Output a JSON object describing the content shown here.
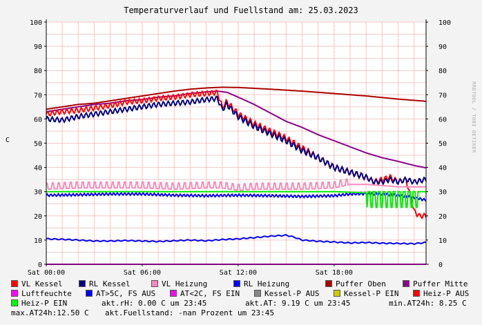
{
  "title": "Temperaturverlauf und Fuellstand am: 25.03.2023",
  "side_credit": "RRDTOOL / TOBI OETIKER",
  "chart_data": {
    "type": "line",
    "ylabel": "C",
    "ylim": [
      0,
      100
    ],
    "yticks": [
      0,
      10,
      20,
      30,
      40,
      50,
      60,
      70,
      80,
      90,
      100
    ],
    "xlim": [
      0,
      23.75
    ],
    "xticks": [
      {
        "h": 0,
        "label": "Sat 00:00"
      },
      {
        "h": 6,
        "label": "Sat 06:00"
      },
      {
        "h": 12,
        "label": "Sat 12:00"
      },
      {
        "h": 18,
        "label": "Sat 18:00"
      }
    ],
    "grid": true,
    "series": [
      {
        "name": "Puffer Oben",
        "color": "#aa0000",
        "x": [
          0,
          1,
          2,
          3,
          4,
          5,
          6,
          7,
          8,
          9,
          10,
          11,
          12,
          14,
          16,
          18,
          20,
          22,
          23.75
        ],
        "y": [
          64,
          65,
          66,
          66.5,
          67.5,
          68.5,
          69.5,
          70.5,
          71.5,
          72.3,
          72.8,
          73.1,
          73,
          72.3,
          71.5,
          70.5,
          69.5,
          68.2,
          67.3
        ]
      },
      {
        "name": "Puffer Mitte",
        "color": "#8b008b",
        "x": [
          0,
          1,
          2,
          3,
          4,
          5,
          6,
          7,
          8,
          9,
          10,
          10.7,
          11.3,
          12,
          13,
          14,
          15,
          16,
          17,
          18,
          19,
          20,
          21,
          22,
          23,
          23.75
        ],
        "y": [
          63,
          64,
          65,
          66,
          66.5,
          67.5,
          68,
          69,
          69.5,
          70.5,
          71.2,
          71.5,
          71,
          69,
          66,
          62.5,
          59,
          56.5,
          53.5,
          51,
          48.5,
          46,
          44,
          42.5,
          40.8,
          39.8
        ]
      },
      {
        "name": "VL Kessel",
        "color": "#ff0000",
        "x": [
          0,
          1,
          2,
          3,
          4,
          5,
          6,
          7,
          8,
          9,
          10,
          10.7,
          11,
          11.3,
          12,
          13,
          14,
          15,
          16,
          17,
          18,
          19,
          20,
          20.5,
          21,
          21.5,
          22,
          22.5,
          23,
          23.3,
          23.75
        ],
        "y": [
          62,
          63,
          63.5,
          64.5,
          65.5,
          67,
          67.5,
          68.5,
          69,
          70,
          70.5,
          71,
          65,
          67,
          62,
          58,
          55,
          52,
          48,
          44,
          40,
          38,
          36,
          34,
          35,
          36,
          34,
          35,
          22,
          20,
          20
        ]
      },
      {
        "name": "RL Kessel",
        "color": "#000080",
        "x": [
          0,
          1,
          2,
          3,
          4,
          5,
          6,
          7,
          8,
          9,
          10,
          10.7,
          11,
          11.3,
          12,
          13,
          14,
          15,
          16,
          17,
          18,
          19,
          20,
          20.5,
          21,
          21.5,
          22,
          22.5,
          23,
          23.75
        ],
        "y": [
          60,
          59.5,
          61,
          62,
          63,
          64,
          65,
          66,
          66.5,
          67,
          68,
          68.5,
          64,
          66,
          61,
          57,
          54,
          51,
          47,
          44,
          40,
          38,
          36,
          34,
          34,
          35,
          34,
          35,
          34,
          35
        ]
      },
      {
        "name": "VL Heizung",
        "color": "#ff88bb",
        "x": [
          0,
          2,
          4,
          6,
          8,
          10,
          11,
          12,
          13,
          14,
          16,
          18,
          19,
          20,
          21,
          22,
          23,
          23.75
        ],
        "y": [
          31,
          31.5,
          31.5,
          31.5,
          31,
          31.5,
          31.5,
          30.5,
          31,
          31,
          31,
          31.5,
          33,
          33,
          32.5,
          32,
          32,
          32
        ]
      },
      {
        "name": "RL Heizung",
        "color": "#0000ff",
        "x": [
          0,
          2,
          4,
          6,
          8,
          10,
          12,
          14,
          16,
          18,
          19,
          20,
          21,
          22,
          23,
          23.75
        ],
        "y": [
          28.5,
          28.7,
          29,
          29,
          28.5,
          28.3,
          28.5,
          28.3,
          28,
          28.3,
          29,
          29.2,
          29,
          28.5,
          27.5,
          26.5
        ]
      },
      {
        "name": "Luftfeuchte",
        "color": "#ff00ff",
        "x": [
          0,
          23.75
        ],
        "y": [
          0,
          0
        ]
      },
      {
        "name": "AT>5C, FS AUS",
        "color": "#0000ff",
        "x": [
          0,
          1,
          2,
          3,
          4,
          5,
          6,
          7,
          8,
          9,
          10,
          11,
          12,
          13,
          14,
          15,
          15.5,
          16,
          17,
          18,
          19,
          20,
          21,
          22,
          23,
          23.75
        ],
        "y": [
          10.5,
          10.3,
          10,
          9.6,
          9.6,
          9.8,
          9.6,
          9.4,
          9.7,
          10,
          9.7,
          10.2,
          10.5,
          11,
          11.6,
          12,
          11.2,
          10,
          9.5,
          9.2,
          8.8,
          9,
          8.7,
          8.6,
          8.5,
          9
        ]
      },
      {
        "name": "Heiz-P EIN",
        "color": "#00ee00",
        "x": [
          0,
          4,
          8,
          12,
          16,
          18,
          20,
          20.5,
          21,
          21.5,
          22,
          22.5,
          23,
          23.2,
          23.75
        ],
        "y": [
          30,
          30,
          30,
          30,
          30,
          30,
          29.5,
          29,
          28.5,
          28,
          28,
          28,
          28,
          30,
          30
        ]
      }
    ]
  },
  "legend": [
    {
      "label": "VL Kessel",
      "color": "#ff0000"
    },
    {
      "label": "RL Kessel",
      "color": "#000080"
    },
    {
      "label": "VL Heizung",
      "color": "#ff88bb"
    },
    {
      "label": "RL Heizung",
      "color": "#0000ff"
    },
    {
      "label": "Puffer Oben",
      "color": "#aa0000"
    },
    {
      "label": "Puffer Mitte",
      "color": "#8b008b"
    },
    {
      "label": "Luftfeuchte",
      "color": "#ff00ff"
    },
    {
      "label": "AT>5C, FS AUS",
      "color": "#0000ff"
    },
    {
      "label": "AT<2C, FS EIN",
      "color": "#ff00ff"
    },
    {
      "label": "Kessel-P AUS",
      "color": "#888888"
    },
    {
      "label": "Kessel-P EIN",
      "color": "#cccc00"
    },
    {
      "label": "Heiz-P AUS",
      "color": "#ff0000"
    },
    {
      "label": "Heiz-P EIN",
      "color": "#00ff00"
    }
  ],
  "info": {
    "rh": "akt.rH: 0.00 C um 23:45",
    "at": "akt.AT: 9.19 C um 23:45",
    "min": "min.AT24h: 8.25 C",
    "max": "max.AT24h:12.50 C",
    "fuellstand": "akt.Fuellstand: -nan Prozent um 23:45"
  }
}
